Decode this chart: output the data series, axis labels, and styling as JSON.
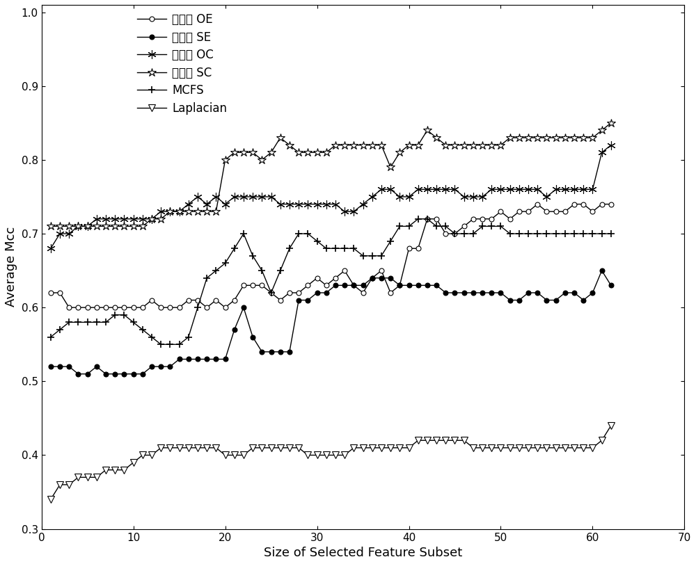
{
  "title": "",
  "xlabel": "Size of Selected Feature Subset",
  "ylabel": "Average Mcc",
  "xlim": [
    0,
    70
  ],
  "ylim": [
    0.3,
    1.01
  ],
  "yticks": [
    0.3,
    0.4,
    0.5,
    0.6,
    0.7,
    0.8,
    0.9,
    1.0
  ],
  "xticks": [
    0,
    10,
    20,
    30,
    40,
    50,
    60,
    70
  ],
  "legend_labels": [
    "本发明 OE",
    "本发明 SE",
    "本发明 OC",
    "本发明 SC",
    "MCFS",
    "Laplacian"
  ],
  "series_OE": [
    0.62,
    0.62,
    0.6,
    0.6,
    0.6,
    0.6,
    0.6,
    0.6,
    0.6,
    0.6,
    0.6,
    0.61,
    0.6,
    0.6,
    0.6,
    0.61,
    0.61,
    0.6,
    0.61,
    0.6,
    0.61,
    0.63,
    0.63,
    0.63,
    0.62,
    0.61,
    0.62,
    0.62,
    0.63,
    0.64,
    0.63,
    0.64,
    0.65,
    0.63,
    0.62,
    0.64,
    0.65,
    0.62,
    0.63,
    0.68,
    0.68,
    0.72,
    0.72,
    0.7,
    0.7,
    0.71,
    0.72,
    0.72,
    0.72,
    0.73,
    0.72,
    0.73,
    0.73,
    0.74,
    0.73,
    0.73,
    0.73,
    0.74,
    0.74,
    0.73,
    0.74,
    0.74
  ],
  "series_SE": [
    0.52,
    0.52,
    0.52,
    0.51,
    0.51,
    0.52,
    0.51,
    0.51,
    0.51,
    0.51,
    0.51,
    0.52,
    0.52,
    0.52,
    0.53,
    0.53,
    0.53,
    0.53,
    0.53,
    0.53,
    0.57,
    0.6,
    0.56,
    0.54,
    0.54,
    0.54,
    0.54,
    0.61,
    0.61,
    0.62,
    0.62,
    0.63,
    0.63,
    0.63,
    0.63,
    0.64,
    0.64,
    0.64,
    0.63,
    0.63,
    0.63,
    0.63,
    0.63,
    0.62,
    0.62,
    0.62,
    0.62,
    0.62,
    0.62,
    0.62,
    0.61,
    0.61,
    0.62,
    0.62,
    0.61,
    0.61,
    0.62,
    0.62,
    0.61,
    0.62,
    0.65,
    0.63
  ],
  "series_OC": [
    0.68,
    0.7,
    0.7,
    0.71,
    0.71,
    0.72,
    0.72,
    0.72,
    0.72,
    0.72,
    0.72,
    0.72,
    0.73,
    0.73,
    0.73,
    0.74,
    0.75,
    0.74,
    0.75,
    0.74,
    0.75,
    0.75,
    0.75,
    0.75,
    0.75,
    0.74,
    0.74,
    0.74,
    0.74,
    0.74,
    0.74,
    0.74,
    0.73,
    0.73,
    0.74,
    0.75,
    0.76,
    0.76,
    0.75,
    0.75,
    0.76,
    0.76,
    0.76,
    0.76,
    0.76,
    0.75,
    0.75,
    0.75,
    0.76,
    0.76,
    0.76,
    0.76,
    0.76,
    0.76,
    0.75,
    0.76,
    0.76,
    0.76,
    0.76,
    0.76,
    0.81,
    0.82
  ],
  "series_SC": [
    0.71,
    0.71,
    0.71,
    0.71,
    0.71,
    0.71,
    0.71,
    0.71,
    0.71,
    0.71,
    0.71,
    0.72,
    0.72,
    0.73,
    0.73,
    0.73,
    0.73,
    0.73,
    0.73,
    0.8,
    0.81,
    0.81,
    0.81,
    0.8,
    0.81,
    0.83,
    0.82,
    0.81,
    0.81,
    0.81,
    0.81,
    0.82,
    0.82,
    0.82,
    0.82,
    0.82,
    0.82,
    0.79,
    0.81,
    0.82,
    0.82,
    0.84,
    0.83,
    0.82,
    0.82,
    0.82,
    0.82,
    0.82,
    0.82,
    0.82,
    0.83,
    0.83,
    0.83,
    0.83,
    0.83,
    0.83,
    0.83,
    0.83,
    0.83,
    0.83,
    0.84,
    0.85
  ],
  "series_MCFS": [
    0.56,
    0.57,
    0.58,
    0.58,
    0.58,
    0.58,
    0.58,
    0.59,
    0.59,
    0.58,
    0.57,
    0.56,
    0.55,
    0.55,
    0.55,
    0.56,
    0.6,
    0.64,
    0.65,
    0.66,
    0.68,
    0.7,
    0.67,
    0.65,
    0.62,
    0.65,
    0.68,
    0.7,
    0.7,
    0.69,
    0.68,
    0.68,
    0.68,
    0.68,
    0.67,
    0.67,
    0.67,
    0.69,
    0.71,
    0.71,
    0.72,
    0.72,
    0.71,
    0.71,
    0.7,
    0.7,
    0.7,
    0.71,
    0.71,
    0.71,
    0.7,
    0.7,
    0.7,
    0.7,
    0.7,
    0.7,
    0.7,
    0.7,
    0.7,
    0.7,
    0.7,
    0.7
  ],
  "series_Laplacian": [
    0.34,
    0.36,
    0.36,
    0.37,
    0.37,
    0.37,
    0.38,
    0.38,
    0.38,
    0.39,
    0.4,
    0.4,
    0.41,
    0.41,
    0.41,
    0.41,
    0.41,
    0.41,
    0.41,
    0.4,
    0.4,
    0.4,
    0.41,
    0.41,
    0.41,
    0.41,
    0.41,
    0.41,
    0.4,
    0.4,
    0.4,
    0.4,
    0.4,
    0.41,
    0.41,
    0.41,
    0.41,
    0.41,
    0.41,
    0.41,
    0.42,
    0.42,
    0.42,
    0.42,
    0.42,
    0.42,
    0.41,
    0.41,
    0.41,
    0.41,
    0.41,
    0.41,
    0.41,
    0.41,
    0.41,
    0.41,
    0.41,
    0.41,
    0.41,
    0.41,
    0.42,
    0.44
  ],
  "line_color": "#000000",
  "background_color": "#ffffff"
}
